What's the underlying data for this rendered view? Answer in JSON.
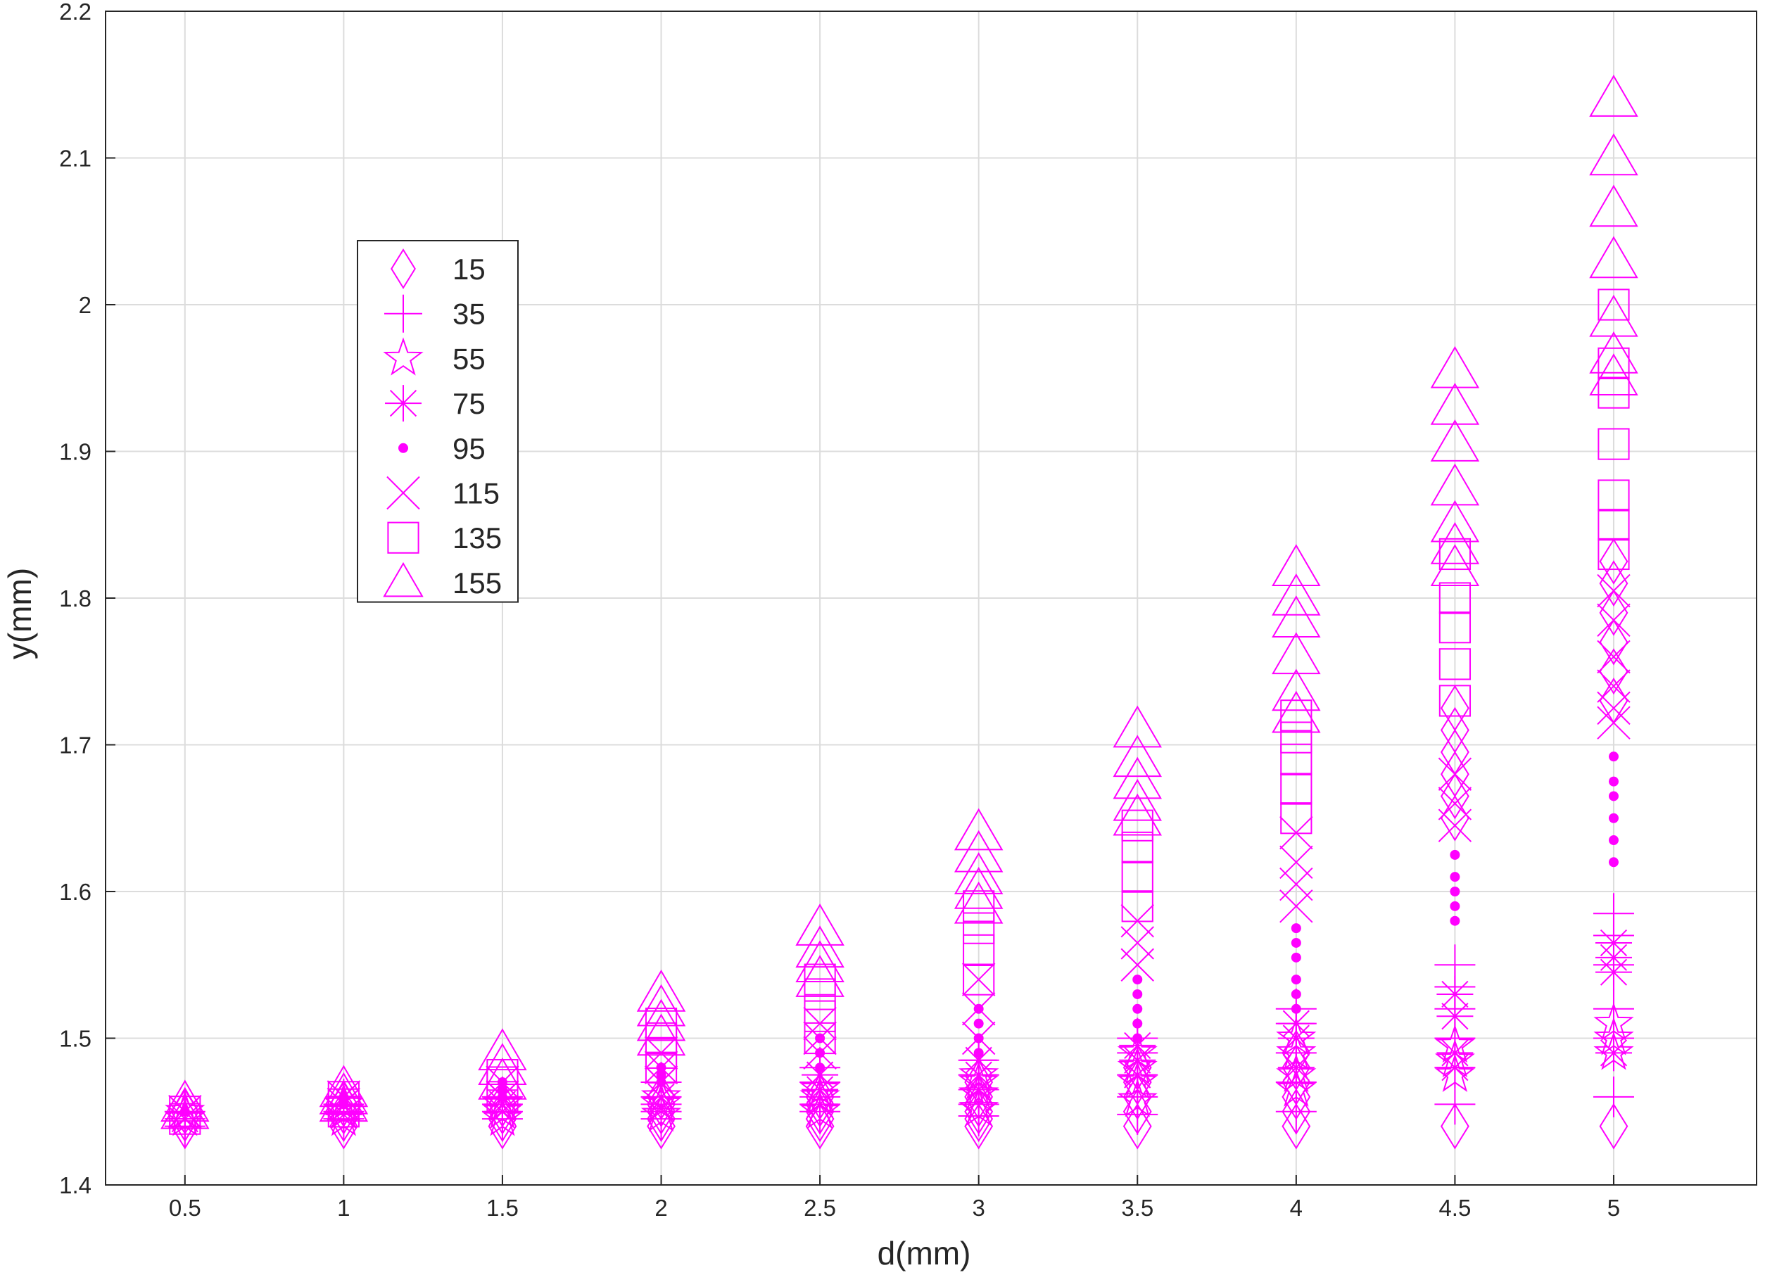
{
  "chart_data": {
    "type": "scatter",
    "title": "",
    "xlabel": "d(mm)",
    "ylabel": "y(mm)",
    "xlim": [
      0.25,
      5.45
    ],
    "ylim": [
      1.4,
      2.2
    ],
    "xticks": [
      "0.5",
      "1",
      "1.5",
      "2",
      "2.5",
      "3",
      "3.5",
      "4",
      "4.5",
      "5"
    ],
    "yticks": [
      "1.4",
      "1.5",
      "1.6",
      "1.7",
      "1.8",
      "1.9",
      "2",
      "2.1",
      "2.2"
    ],
    "grid": true,
    "legend_position": "upper-left",
    "marker_color": "#ff00ff",
    "series": [
      {
        "name": "15",
        "marker": "diamond",
        "points": [
          [
            0.5,
            1.44
          ],
          [
            0.5,
            1.445
          ],
          [
            0.5,
            1.45
          ],
          [
            1,
            1.44
          ],
          [
            1,
            1.445
          ],
          [
            1,
            1.45
          ],
          [
            1,
            1.455
          ],
          [
            1.5,
            1.44
          ],
          [
            1.5,
            1.445
          ],
          [
            1.5,
            1.45
          ],
          [
            1.5,
            1.455
          ],
          [
            2,
            1.44
          ],
          [
            2,
            1.445
          ],
          [
            2,
            1.45
          ],
          [
            2,
            1.455
          ],
          [
            2,
            1.46
          ],
          [
            2.5,
            1.44
          ],
          [
            2.5,
            1.445
          ],
          [
            2.5,
            1.45
          ],
          [
            2.5,
            1.455
          ],
          [
            2.5,
            1.46
          ],
          [
            3,
            1.44
          ],
          [
            3,
            1.445
          ],
          [
            3,
            1.45
          ],
          [
            3,
            1.455
          ],
          [
            3,
            1.46
          ],
          [
            3,
            1.47
          ],
          [
            3.5,
            1.44
          ],
          [
            3.5,
            1.45
          ],
          [
            3.5,
            1.46
          ],
          [
            3.5,
            1.47
          ],
          [
            3.5,
            1.48
          ],
          [
            4,
            1.44
          ],
          [
            4,
            1.45
          ],
          [
            4,
            1.46
          ],
          [
            4,
            1.47
          ],
          [
            4,
            1.48
          ],
          [
            4,
            1.49
          ],
          [
            4.5,
            1.44
          ],
          [
            4.5,
            1.65
          ],
          [
            4.5,
            1.665
          ],
          [
            4.5,
            1.68
          ],
          [
            4.5,
            1.695
          ],
          [
            4.5,
            1.71
          ],
          [
            4.5,
            1.725
          ],
          [
            5,
            1.44
          ],
          [
            5,
            1.73
          ],
          [
            5,
            1.75
          ],
          [
            5,
            1.77
          ],
          [
            5,
            1.79
          ],
          [
            5,
            1.81
          ],
          [
            5,
            1.825
          ]
        ]
      },
      {
        "name": "35",
        "marker": "plus",
        "points": [
          [
            0.5,
            1.44
          ],
          [
            0.5,
            1.445
          ],
          [
            0.5,
            1.45
          ],
          [
            1,
            1.445
          ],
          [
            1,
            1.45
          ],
          [
            1,
            1.455
          ],
          [
            1.5,
            1.445
          ],
          [
            1.5,
            1.45
          ],
          [
            1.5,
            1.455
          ],
          [
            1.5,
            1.46
          ],
          [
            2,
            1.445
          ],
          [
            2,
            1.45
          ],
          [
            2,
            1.455
          ],
          [
            2,
            1.46
          ],
          [
            2,
            1.47
          ],
          [
            2.5,
            1.45
          ],
          [
            2.5,
            1.455
          ],
          [
            2.5,
            1.46
          ],
          [
            2.5,
            1.47
          ],
          [
            2.5,
            1.48
          ],
          [
            3,
            1.447
          ],
          [
            3,
            1.455
          ],
          [
            3,
            1.465
          ],
          [
            3,
            1.475
          ],
          [
            3,
            1.485
          ],
          [
            3.5,
            1.448
          ],
          [
            3.5,
            1.46
          ],
          [
            3.5,
            1.475
          ],
          [
            3.5,
            1.49
          ],
          [
            3.5,
            1.5
          ],
          [
            4,
            1.45
          ],
          [
            4,
            1.47
          ],
          [
            4,
            1.49
          ],
          [
            4,
            1.51
          ],
          [
            4,
            1.52
          ],
          [
            4.5,
            1.455
          ],
          [
            4.5,
            1.48
          ],
          [
            4.5,
            1.5
          ],
          [
            4.5,
            1.52
          ],
          [
            4.5,
            1.535
          ],
          [
            4.5,
            1.55
          ],
          [
            5,
            1.46
          ],
          [
            5,
            1.5
          ],
          [
            5,
            1.52
          ],
          [
            5,
            1.55
          ],
          [
            5,
            1.57
          ],
          [
            5,
            1.585
          ]
        ]
      },
      {
        "name": "55",
        "marker": "pentagram",
        "points": [
          [
            0.5,
            1.445
          ],
          [
            0.5,
            1.45
          ],
          [
            1,
            1.445
          ],
          [
            1,
            1.45
          ],
          [
            1,
            1.455
          ],
          [
            1.5,
            1.445
          ],
          [
            1.5,
            1.45
          ],
          [
            1.5,
            1.455
          ],
          [
            2,
            1.448
          ],
          [
            2,
            1.455
          ],
          [
            2,
            1.46
          ],
          [
            2.5,
            1.45
          ],
          [
            2.5,
            1.46
          ],
          [
            2.5,
            1.465
          ],
          [
            3,
            1.452
          ],
          [
            3,
            1.462
          ],
          [
            3,
            1.47
          ],
          [
            3,
            1.475
          ],
          [
            3.5,
            1.458
          ],
          [
            3.5,
            1.47
          ],
          [
            3.5,
            1.48
          ],
          [
            3.5,
            1.49
          ],
          [
            4,
            1.465
          ],
          [
            4,
            1.475
          ],
          [
            4,
            1.49
          ],
          [
            4,
            1.5
          ],
          [
            4.5,
            1.475
          ],
          [
            4.5,
            1.485
          ],
          [
            4.5,
            1.495
          ],
          [
            5,
            1.49
          ],
          [
            5,
            1.5
          ],
          [
            5,
            1.51
          ]
        ]
      },
      {
        "name": "75",
        "marker": "asterisk",
        "points": [
          [
            0.5,
            1.445
          ],
          [
            0.5,
            1.45
          ],
          [
            1,
            1.448
          ],
          [
            1,
            1.455
          ],
          [
            1,
            1.46
          ],
          [
            1.5,
            1.45
          ],
          [
            1.5,
            1.455
          ],
          [
            1.5,
            1.46
          ],
          [
            2,
            1.452
          ],
          [
            2,
            1.46
          ],
          [
            2,
            1.47
          ],
          [
            2.5,
            1.455
          ],
          [
            2.5,
            1.465
          ],
          [
            2.5,
            1.475
          ],
          [
            3,
            1.465
          ],
          [
            3,
            1.475
          ],
          [
            3,
            1.485
          ],
          [
            3.5,
            1.475
          ],
          [
            3.5,
            1.485
          ],
          [
            3.5,
            1.495
          ],
          [
            4,
            1.48
          ],
          [
            4,
            1.5
          ],
          [
            4,
            1.51
          ],
          [
            4.5,
            1.48
          ],
          [
            4.5,
            1.49
          ],
          [
            4.5,
            1.515
          ],
          [
            4.5,
            1.53
          ],
          [
            5,
            1.49
          ],
          [
            5,
            1.545
          ],
          [
            5,
            1.555
          ],
          [
            5,
            1.565
          ]
        ]
      },
      {
        "name": "95",
        "marker": "point",
        "points": [
          [
            0.5,
            1.45
          ],
          [
            1,
            1.455
          ],
          [
            1,
            1.46
          ],
          [
            1.5,
            1.46
          ],
          [
            1.5,
            1.465
          ],
          [
            1.5,
            1.47
          ],
          [
            2,
            1.47
          ],
          [
            2,
            1.475
          ],
          [
            2,
            1.48
          ],
          [
            2.5,
            1.48
          ],
          [
            2.5,
            1.49
          ],
          [
            2.5,
            1.5
          ],
          [
            3,
            1.49
          ],
          [
            3,
            1.5
          ],
          [
            3,
            1.51
          ],
          [
            3,
            1.52
          ],
          [
            3.5,
            1.5
          ],
          [
            3.5,
            1.51
          ],
          [
            3.5,
            1.52
          ],
          [
            3.5,
            1.53
          ],
          [
            3.5,
            1.54
          ],
          [
            4,
            1.52
          ],
          [
            4,
            1.53
          ],
          [
            4,
            1.54
          ],
          [
            4,
            1.555
          ],
          [
            4,
            1.565
          ],
          [
            4,
            1.575
          ],
          [
            4.5,
            1.58
          ],
          [
            4.5,
            1.59
          ],
          [
            4.5,
            1.6
          ],
          [
            4.5,
            1.61
          ],
          [
            4.5,
            1.625
          ],
          [
            5,
            1.62
          ],
          [
            5,
            1.635
          ],
          [
            5,
            1.65
          ],
          [
            5,
            1.665
          ],
          [
            5,
            1.675
          ],
          [
            5,
            1.692
          ]
        ]
      },
      {
        "name": "115",
        "marker": "x",
        "points": [
          [
            0.5,
            1.45
          ],
          [
            1,
            1.455
          ],
          [
            1,
            1.46
          ],
          [
            1.5,
            1.46
          ],
          [
            1.5,
            1.47
          ],
          [
            2,
            1.47
          ],
          [
            2,
            1.48
          ],
          [
            2,
            1.49
          ],
          [
            2.5,
            1.49
          ],
          [
            2.5,
            1.5
          ],
          [
            2.5,
            1.51
          ],
          [
            3,
            1.5
          ],
          [
            3,
            1.52
          ],
          [
            3,
            1.54
          ],
          [
            3.5,
            1.55
          ],
          [
            3.5,
            1.565
          ],
          [
            3.5,
            1.58
          ],
          [
            4,
            1.59
          ],
          [
            4,
            1.605
          ],
          [
            4,
            1.62
          ],
          [
            4,
            1.64
          ],
          [
            4.5,
            1.645
          ],
          [
            4.5,
            1.66
          ],
          [
            4.5,
            1.68
          ],
          [
            5,
            1.715
          ],
          [
            5,
            1.725
          ],
          [
            5,
            1.74
          ],
          [
            5,
            1.76
          ],
          [
            5,
            1.785
          ],
          [
            5,
            1.805
          ]
        ]
      },
      {
        "name": "135",
        "marker": "square",
        "points": [
          [
            0.5,
            1.445
          ],
          [
            0.5,
            1.45
          ],
          [
            1,
            1.45
          ],
          [
            1,
            1.455
          ],
          [
            1,
            1.46
          ],
          [
            1.5,
            1.46
          ],
          [
            1.5,
            1.47
          ],
          [
            1.5,
            1.475
          ],
          [
            2,
            1.48
          ],
          [
            2,
            1.49
          ],
          [
            2,
            1.5
          ],
          [
            2,
            1.51
          ],
          [
            2.5,
            1.5
          ],
          [
            2.5,
            1.515
          ],
          [
            2.5,
            1.53
          ],
          [
            2.5,
            1.54
          ],
          [
            3,
            1.54
          ],
          [
            3,
            1.56
          ],
          [
            3,
            1.575
          ],
          [
            3,
            1.59
          ],
          [
            3.5,
            1.59
          ],
          [
            3.5,
            1.61
          ],
          [
            3.5,
            1.63
          ],
          [
            3.5,
            1.645
          ],
          [
            4,
            1.65
          ],
          [
            4,
            1.67
          ],
          [
            4,
            1.69
          ],
          [
            4,
            1.705
          ],
          [
            4,
            1.72
          ],
          [
            4.5,
            1.73
          ],
          [
            4.5,
            1.755
          ],
          [
            4.5,
            1.78
          ],
          [
            4.5,
            1.8
          ],
          [
            4.5,
            1.83
          ],
          [
            5,
            1.83
          ],
          [
            5,
            1.85
          ],
          [
            5,
            1.87
          ],
          [
            5,
            1.905
          ],
          [
            5,
            1.94
          ],
          [
            5,
            1.96
          ],
          [
            5,
            2.0
          ]
        ]
      },
      {
        "name": "155",
        "marker": "triangle",
        "points": [
          [
            0.5,
            1.45
          ],
          [
            0.5,
            1.455
          ],
          [
            1,
            1.455
          ],
          [
            1,
            1.46
          ],
          [
            1,
            1.465
          ],
          [
            1.5,
            1.47
          ],
          [
            1.5,
            1.48
          ],
          [
            1.5,
            1.49
          ],
          [
            2,
            1.5
          ],
          [
            2,
            1.51
          ],
          [
            2,
            1.52
          ],
          [
            2,
            1.53
          ],
          [
            2.5,
            1.54
          ],
          [
            2.5,
            1.55
          ],
          [
            2.5,
            1.56
          ],
          [
            2.5,
            1.575
          ],
          [
            3,
            1.59
          ],
          [
            3,
            1.6
          ],
          [
            3,
            1.61
          ],
          [
            3,
            1.625
          ],
          [
            3,
            1.64
          ],
          [
            3.5,
            1.65
          ],
          [
            3.5,
            1.66
          ],
          [
            3.5,
            1.675
          ],
          [
            3.5,
            1.69
          ],
          [
            3.5,
            1.71
          ],
          [
            4,
            1.72
          ],
          [
            4,
            1.735
          ],
          [
            4,
            1.76
          ],
          [
            4,
            1.785
          ],
          [
            4,
            1.8
          ],
          [
            4,
            1.82
          ],
          [
            4.5,
            1.82
          ],
          [
            4.5,
            1.835
          ],
          [
            4.5,
            1.85
          ],
          [
            4.5,
            1.875
          ],
          [
            4.5,
            1.905
          ],
          [
            4.5,
            1.93
          ],
          [
            4.5,
            1.955
          ],
          [
            5,
            1.95
          ],
          [
            5,
            1.965
          ],
          [
            5,
            1.99
          ],
          [
            5,
            2.03
          ],
          [
            5,
            2.065
          ],
          [
            5,
            2.1
          ],
          [
            5,
            2.14
          ]
        ]
      }
    ]
  }
}
